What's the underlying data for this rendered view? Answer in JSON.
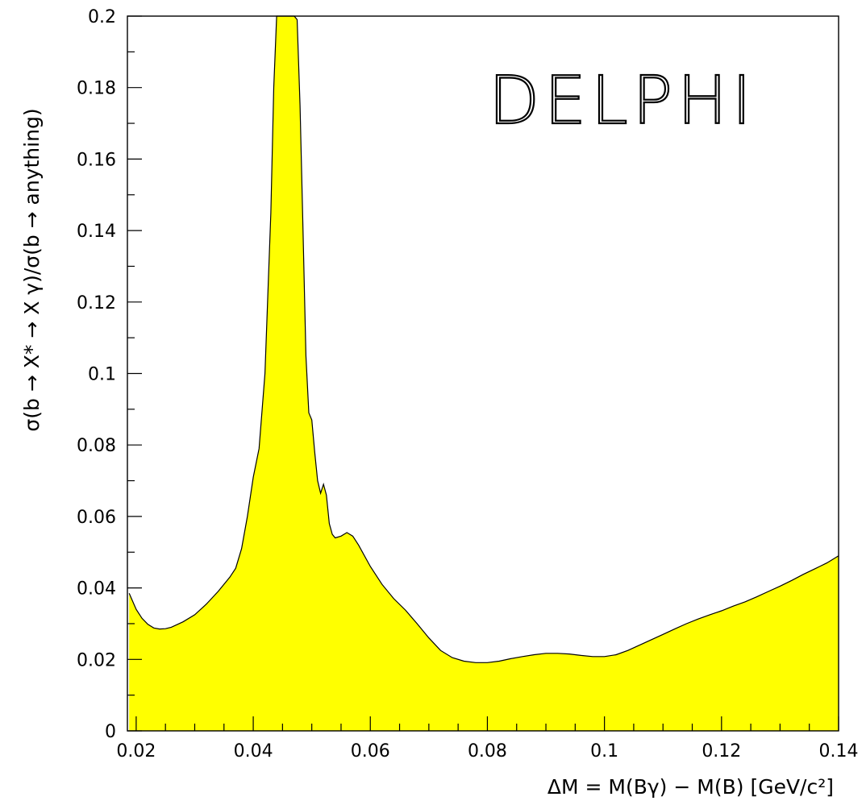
{
  "logo": {
    "text": "DELPHI"
  },
  "chart_data": {
    "type": "area",
    "xlabel": "ΔM = M(Bγ) − M(B) [GeV/c²]",
    "ylabel": "σ(b → X* → X γ)/σ(b → anything)",
    "xlim": [
      0.0185,
      0.14
    ],
    "ylim": [
      0,
      0.2
    ],
    "x_ticks": [
      0.02,
      0.04,
      0.06,
      0.08,
      0.1,
      0.12,
      0.14
    ],
    "x_tick_labels": [
      "0.02",
      "0.04",
      "0.06",
      "0.08",
      "0.1",
      "0.12",
      "0.14"
    ],
    "y_ticks": [
      0,
      0.02,
      0.04,
      0.06,
      0.08,
      0.1,
      0.12,
      0.14,
      0.16,
      0.18,
      0.2
    ],
    "y_tick_labels": [
      "0",
      "0.02",
      "0.04",
      "0.06",
      "0.08",
      "0.1",
      "0.12",
      "0.14",
      "0.16",
      "0.18",
      "0.2"
    ],
    "fill_color": "#ffff00",
    "line_color": "#000000",
    "grid": false,
    "series": [
      {
        "x": [
          0.0188,
          0.02,
          0.021,
          0.022,
          0.023,
          0.024,
          0.025,
          0.026,
          0.028,
          0.03,
          0.032,
          0.034,
          0.036,
          0.037,
          0.038,
          0.039,
          0.04,
          0.041,
          0.042,
          0.043,
          0.0435,
          0.044,
          0.0445,
          0.045,
          0.0455,
          0.046,
          0.0465,
          0.047,
          0.0475,
          0.048,
          0.0485,
          0.049,
          0.0495,
          0.05,
          0.0505,
          0.051,
          0.0515,
          0.052,
          0.0525,
          0.053,
          0.0535,
          0.054,
          0.055,
          0.056,
          0.057,
          0.058,
          0.06,
          0.062,
          0.064,
          0.066,
          0.068,
          0.07,
          0.072,
          0.074,
          0.076,
          0.078,
          0.08,
          0.082,
          0.084,
          0.086,
          0.088,
          0.09,
          0.092,
          0.094,
          0.096,
          0.098,
          0.1,
          0.102,
          0.104,
          0.106,
          0.108,
          0.11,
          0.112,
          0.114,
          0.116,
          0.118,
          0.12,
          0.122,
          0.124,
          0.126,
          0.128,
          0.13,
          0.132,
          0.134,
          0.136,
          0.138,
          0.14
        ],
        "y": [
          0.0385,
          0.034,
          0.0315,
          0.0298,
          0.0288,
          0.0285,
          0.0286,
          0.029,
          0.0305,
          0.0325,
          0.0355,
          0.039,
          0.043,
          0.0455,
          0.051,
          0.06,
          0.071,
          0.079,
          0.1,
          0.145,
          0.18,
          0.2,
          0.2,
          0.2,
          0.2,
          0.2,
          0.2,
          0.2,
          0.199,
          0.175,
          0.14,
          0.105,
          0.089,
          0.087,
          0.078,
          0.07,
          0.0665,
          0.069,
          0.066,
          0.058,
          0.055,
          0.054,
          0.0545,
          0.0555,
          0.0545,
          0.052,
          0.046,
          0.041,
          0.037,
          0.0338,
          0.03,
          0.026,
          0.0225,
          0.0205,
          0.0195,
          0.0191,
          0.0191,
          0.0195,
          0.0202,
          0.0208,
          0.0213,
          0.0217,
          0.0217,
          0.0215,
          0.0211,
          0.0208,
          0.0208,
          0.0213,
          0.0225,
          0.024,
          0.0255,
          0.027,
          0.0285,
          0.03,
          0.0313,
          0.0325,
          0.0336,
          0.0349,
          0.0361,
          0.0375,
          0.039,
          0.0405,
          0.0421,
          0.0438,
          0.0454,
          0.047,
          0.049
        ]
      }
    ]
  }
}
